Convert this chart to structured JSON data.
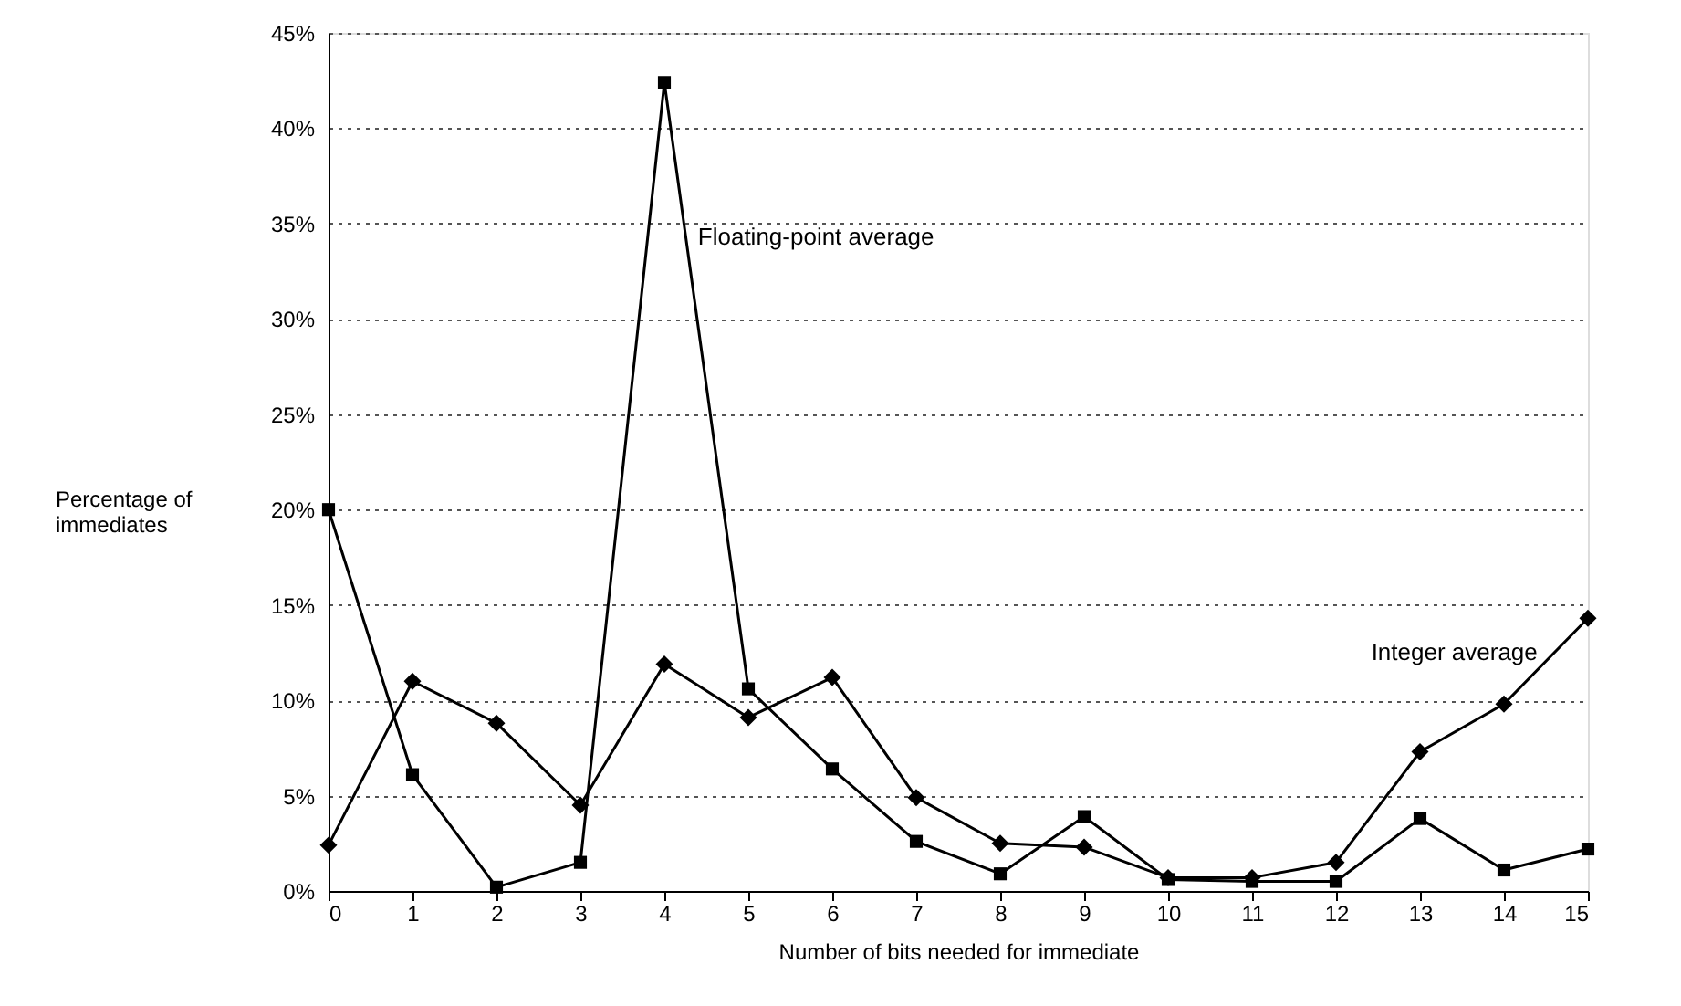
{
  "chart_data": {
    "type": "line",
    "xlabel": "Number of bits needed for immediate",
    "ylabel": "Percentage of immediates",
    "x": [
      0,
      1,
      2,
      3,
      4,
      5,
      6,
      7,
      8,
      9,
      10,
      11,
      12,
      13,
      14,
      15
    ],
    "series": [
      {
        "name": "Floating-point average",
        "color": "#000000",
        "marker": "square",
        "values": [
          20.0,
          6.1,
          0.2,
          1.5,
          42.4,
          10.6,
          6.4,
          2.6,
          0.9,
          3.9,
          0.6,
          0.5,
          0.5,
          3.8,
          1.1,
          2.2
        ]
      },
      {
        "name": "Integer average",
        "color": "#000000",
        "marker": "diamond",
        "values": [
          2.4,
          11.0,
          8.8,
          4.5,
          11.9,
          9.1,
          11.2,
          4.9,
          2.5,
          2.3,
          0.7,
          0.7,
          1.5,
          7.3,
          9.8,
          14.3
        ]
      }
    ],
    "xlim": [
      0,
      15
    ],
    "xticks": [
      0,
      1,
      2,
      3,
      4,
      5,
      6,
      7,
      8,
      9,
      10,
      11,
      12,
      13,
      14,
      15
    ],
    "ylim": [
      0,
      45
    ],
    "yticks": [
      {
        "value": 0,
        "label": "0%"
      },
      {
        "value": 5,
        "label": "5%"
      },
      {
        "value": 10,
        "label": "10%"
      },
      {
        "value": 15,
        "label": "15%"
      },
      {
        "value": 20,
        "label": "20%"
      },
      {
        "value": 25,
        "label": "25%"
      },
      {
        "value": 30,
        "label": "30%"
      },
      {
        "value": 35,
        "label": "35%"
      },
      {
        "value": 40,
        "label": "40%"
      },
      {
        "value": 45,
        "label": "45%"
      }
    ],
    "grid": "y",
    "legend": false,
    "line_style": "solid"
  }
}
